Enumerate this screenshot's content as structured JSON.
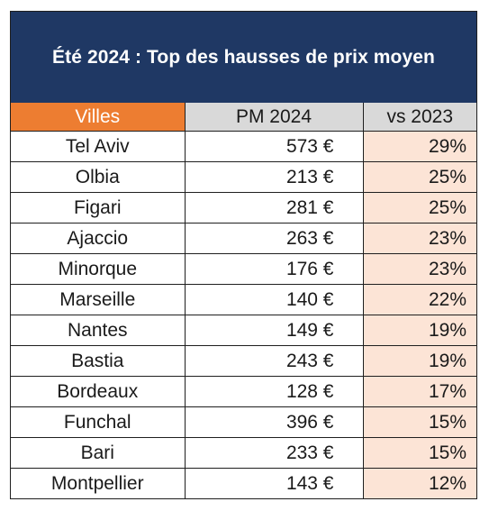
{
  "title": "Été 2024 : Top des hausses de prix moyen",
  "columns": {
    "city": "Villes",
    "price": "PM 2024",
    "change": "vs 2023"
  },
  "rows": [
    {
      "city": "Tel Aviv",
      "price": "573 €",
      "change": "29%"
    },
    {
      "city": "Olbia",
      "price": "213 €",
      "change": "25%"
    },
    {
      "city": "Figari",
      "price": "281 €",
      "change": "25%"
    },
    {
      "city": "Ajaccio",
      "price": "263 €",
      "change": "23%"
    },
    {
      "city": "Minorque",
      "price": "176 €",
      "change": "23%"
    },
    {
      "city": "Marseille",
      "price": "140 €",
      "change": "22%"
    },
    {
      "city": "Nantes",
      "price": "149 €",
      "change": "19%"
    },
    {
      "city": "Bastia",
      "price": "243 €",
      "change": "19%"
    },
    {
      "city": "Bordeaux",
      "price": "128 €",
      "change": "17%"
    },
    {
      "city": "Funchal",
      "price": "396 €",
      "change": "15%"
    },
    {
      "city": "Bari",
      "price": "233 €",
      "change": "15%"
    },
    {
      "city": "Montpellier",
      "price": "143 €",
      "change": "12%"
    }
  ],
  "colors": {
    "title_background": "#1f3864",
    "city_header": "#ed7d31",
    "header_gray": "#d9d9d9",
    "change_cell": "#fce4d6"
  }
}
